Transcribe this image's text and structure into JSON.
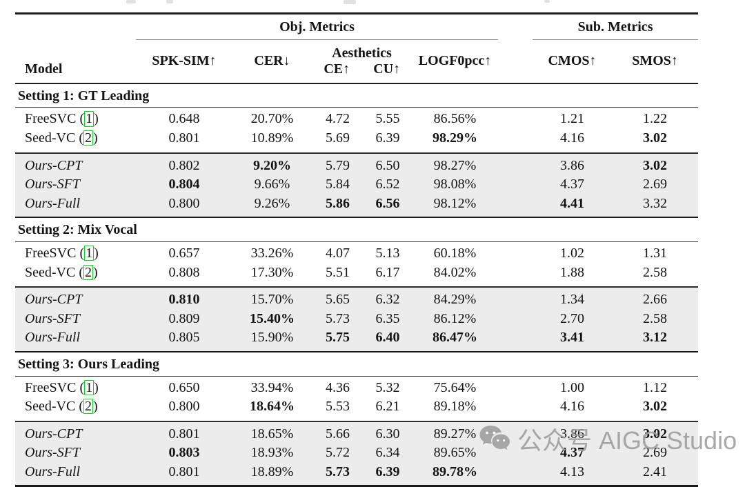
{
  "colors": {
    "row_shade": "#ececec",
    "cite_green": "#0ad422",
    "rule_dark": "#1a1a1a",
    "watermark_gray": "#9d9d9d"
  },
  "header": {
    "groups": [
      {
        "label": "Obj. Metrics"
      },
      {
        "label": "Sub. Metrics"
      }
    ],
    "model_label": "Model",
    "cols": {
      "spk": "SPK-SIM↑",
      "cer": "CER↓",
      "aesthetics": "Aesthetics",
      "ce": "CE↑",
      "cu": "CU↑",
      "logf0": "LOGF0pcc↑",
      "cmos": "CMOS↑",
      "smos": "SMOS↑"
    }
  },
  "sections": [
    {
      "title": "Setting 1: GT Leading",
      "rows": [
        {
          "model": "FreeSVC",
          "cite": "1",
          "group": "baseline",
          "values": [
            "0.648",
            "20.70%",
            "4.72",
            "5.55",
            "86.56%",
            "1.21",
            "1.22"
          ],
          "bold": []
        },
        {
          "model": "Seed-VC",
          "cite": "2",
          "group": "baseline",
          "values": [
            "0.801",
            "10.89%",
            "5.69",
            "6.39",
            "98.29%",
            "4.16",
            "3.02"
          ],
          "bold": [
            4,
            6
          ]
        },
        {
          "model": "Ours-CPT",
          "group": "ours",
          "values": [
            "0.802",
            "9.20%",
            "5.79",
            "6.50",
            "98.27%",
            "3.86",
            "3.02"
          ],
          "bold": [
            1,
            6
          ]
        },
        {
          "model": "Ours-SFT",
          "group": "ours",
          "values": [
            "0.804",
            "9.66%",
            "5.84",
            "6.52",
            "98.08%",
            "4.37",
            "2.69"
          ],
          "bold": [
            0
          ]
        },
        {
          "model": "Ours-Full",
          "group": "ours",
          "values": [
            "0.800",
            "9.26%",
            "5.86",
            "6.56",
            "98.12%",
            "4.41",
            "3.32"
          ],
          "bold": [
            2,
            3,
            5
          ]
        }
      ]
    },
    {
      "title": "Setting 2: Mix Vocal",
      "rows": [
        {
          "model": "FreeSVC",
          "cite": "1",
          "group": "baseline",
          "values": [
            "0.657",
            "33.26%",
            "4.07",
            "5.13",
            "60.18%",
            "1.02",
            "1.31"
          ],
          "bold": []
        },
        {
          "model": "Seed-VC",
          "cite": "2",
          "group": "baseline",
          "values": [
            "0.808",
            "17.30%",
            "5.51",
            "6.17",
            "84.02%",
            "1.88",
            "2.58"
          ],
          "bold": []
        },
        {
          "model": "Ours-CPT",
          "group": "ours",
          "values": [
            "0.810",
            "15.70%",
            "5.65",
            "6.32",
            "84.29%",
            "1.34",
            "2.66"
          ],
          "bold": [
            0
          ]
        },
        {
          "model": "Ours-SFT",
          "group": "ours",
          "values": [
            "0.809",
            "15.40%",
            "5.73",
            "6.35",
            "86.12%",
            "2.70",
            "2.58"
          ],
          "bold": [
            1
          ]
        },
        {
          "model": "Ours-Full",
          "group": "ours",
          "values": [
            "0.805",
            "15.90%",
            "5.75",
            "6.40",
            "86.47%",
            "3.41",
            "3.12"
          ],
          "bold": [
            2,
            3,
            4,
            5,
            6
          ]
        }
      ]
    },
    {
      "title": "Setting 3: Ours Leading",
      "rows": [
        {
          "model": "FreeSVC",
          "cite": "1",
          "group": "baseline",
          "values": [
            "0.650",
            "33.94%",
            "4.36",
            "5.32",
            "75.64%",
            "1.00",
            "1.12"
          ],
          "bold": []
        },
        {
          "model": "Seed-VC",
          "cite": "2",
          "group": "baseline",
          "values": [
            "0.800",
            "18.64%",
            "5.53",
            "6.21",
            "89.18%",
            "4.16",
            "3.02"
          ],
          "bold": [
            1,
            6
          ]
        },
        {
          "model": "Ours-CPT",
          "group": "ours",
          "values": [
            "0.801",
            "18.65%",
            "5.66",
            "6.30",
            "89.27%",
            "3.86",
            "3.02"
          ],
          "bold": [
            6
          ]
        },
        {
          "model": "Ours-SFT",
          "group": "ours",
          "values": [
            "0.803",
            "18.93%",
            "5.72",
            "6.34",
            "89.65%",
            "4.37",
            "2.69"
          ],
          "bold": [
            0,
            5
          ]
        },
        {
          "model": "Ours-Full",
          "group": "ours",
          "values": [
            "0.801",
            "18.89%",
            "5.73",
            "6.39",
            "89.78%",
            "4.13",
            "2.41"
          ],
          "bold": [
            2,
            3,
            4
          ]
        }
      ]
    }
  ],
  "watermark": {
    "text": "公众号 AIGC Studio",
    "icon": "wechat-icon"
  }
}
